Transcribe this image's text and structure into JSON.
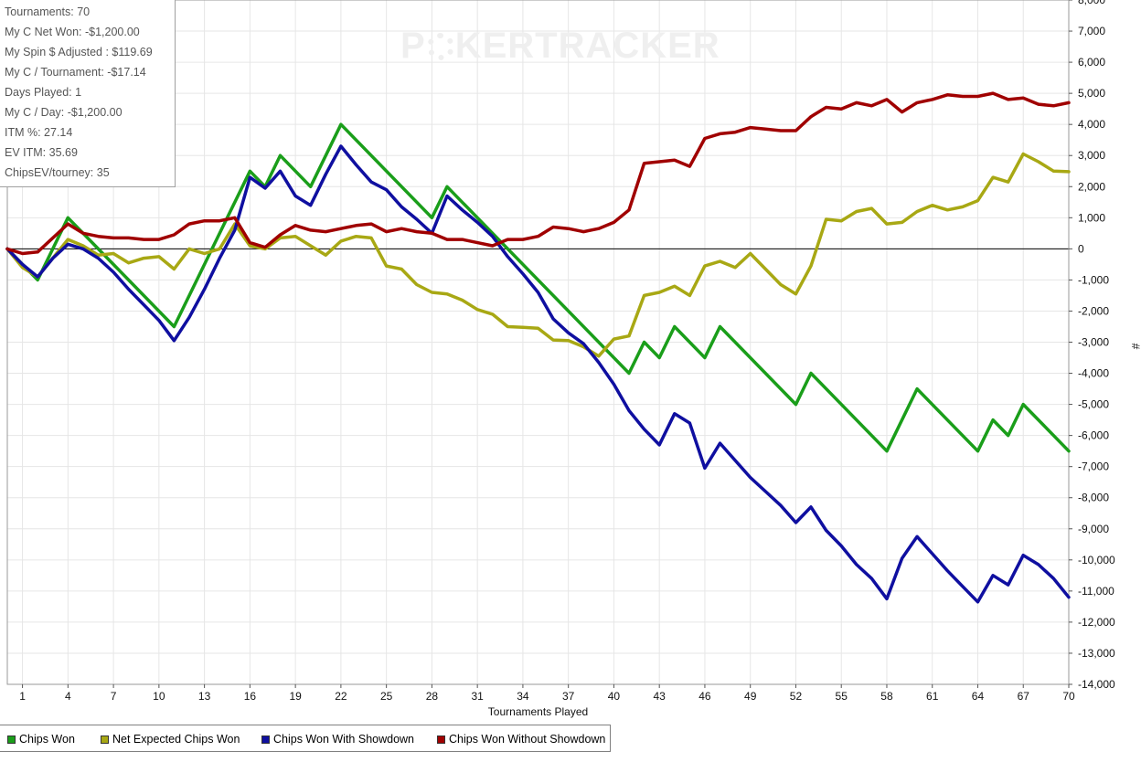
{
  "watermark": {
    "left": "P",
    "right": "KERTRACKER"
  },
  "stats": [
    "Tournaments: 70",
    "My C Net Won: -$1,200.00",
    "My Spin $ Adjusted : $119.69",
    "My C / Tournament: -$17.14",
    "Days Played: 1",
    "My C / Day: -$1,200.00",
    "ITM %: 27.14",
    "EV ITM: 35.69",
    "ChipsEV/tourney: 35"
  ],
  "legend": [
    {
      "label": "Chips Won",
      "color": "#1a9e1a"
    },
    {
      "label": "Net Expected Chips Won",
      "color": "#a8a814"
    },
    {
      "label": "Chips Won With Showdown",
      "color": "#0f0fa0"
    },
    {
      "label": "Chips Won Without Showdown",
      "color": "#a00000"
    }
  ],
  "chart_data": {
    "type": "line",
    "xlabel": "Tournaments Played",
    "ylabel": "#",
    "xlim": [
      0,
      70
    ],
    "ylim": [
      -14000,
      8000
    ],
    "x_ticks": [
      1,
      4,
      7,
      10,
      13,
      16,
      19,
      22,
      25,
      28,
      31,
      34,
      37,
      40,
      43,
      46,
      49,
      52,
      55,
      58,
      61,
      64,
      67,
      70
    ],
    "y_ticks": [
      8000,
      7000,
      6000,
      5000,
      4000,
      3000,
      2000,
      1000,
      0,
      -1000,
      -2000,
      -3000,
      -4000,
      -5000,
      -6000,
      -7000,
      -8000,
      -9000,
      -10000,
      -11000,
      -12000,
      -13000,
      -14000
    ],
    "y_tick_labels": [
      "8,000",
      "7,000",
      "6,000",
      "5,000",
      "4,000",
      "3,000",
      "2,000",
      "1,000",
      "0",
      "-1,000",
      "-2,000",
      "-3,000",
      "-4,000",
      "-5,000",
      "-6,000",
      "-7,000",
      "-8,000",
      "-9,000",
      "-10,000",
      "-11,000",
      "-12,000",
      "-13,000",
      "-14,000"
    ],
    "grid": true,
    "legend_position": "bottom",
    "series": [
      {
        "name": "Chips Won",
        "color": "#1a9e1a",
        "points": [
          [
            0,
            0
          ],
          [
            2,
            -1000
          ],
          [
            4,
            1000
          ],
          [
            11,
            -2500
          ],
          [
            16,
            2500
          ],
          [
            17,
            2000
          ],
          [
            18,
            3000
          ],
          [
            20,
            2000
          ],
          [
            22,
            4000
          ],
          [
            28,
            1000
          ],
          [
            29,
            2000
          ],
          [
            41,
            -4000
          ],
          [
            42,
            -3000
          ],
          [
            43,
            -3500
          ],
          [
            44,
            -2500
          ],
          [
            46,
            -3500
          ],
          [
            47,
            -2500
          ],
          [
            52,
            -5000
          ],
          [
            53,
            -4000
          ],
          [
            58,
            -6500
          ],
          [
            60,
            -4500
          ],
          [
            64,
            -6500
          ],
          [
            65,
            -5500
          ],
          [
            66,
            -6000
          ],
          [
            67,
            -5000
          ],
          [
            70,
            -6500
          ]
        ]
      },
      {
        "name": "Net Expected Chips Won",
        "color": "#a8a814",
        "points": [
          [
            0,
            0
          ],
          [
            1,
            -600
          ],
          [
            2,
            -900
          ],
          [
            4,
            300
          ],
          [
            5,
            100
          ],
          [
            6,
            -200
          ],
          [
            7,
            -150
          ],
          [
            8,
            -450
          ],
          [
            9,
            -300
          ],
          [
            10,
            -250
          ],
          [
            11,
            -650
          ],
          [
            12,
            0
          ],
          [
            13,
            -150
          ],
          [
            14,
            0
          ],
          [
            15,
            800
          ],
          [
            16,
            100
          ],
          [
            17,
            0
          ],
          [
            18,
            350
          ],
          [
            19,
            400
          ],
          [
            20,
            100
          ],
          [
            21,
            -200
          ],
          [
            22,
            250
          ],
          [
            23,
            400
          ],
          [
            24,
            350
          ],
          [
            25,
            -550
          ],
          [
            26,
            -650
          ],
          [
            27,
            -1150
          ],
          [
            28,
            -1400
          ],
          [
            29,
            -1450
          ],
          [
            30,
            -1650
          ],
          [
            31,
            -1950
          ],
          [
            32,
            -2100
          ],
          [
            33,
            -2500
          ],
          [
            34,
            -2520
          ],
          [
            35,
            -2550
          ],
          [
            36,
            -2930
          ],
          [
            37,
            -2950
          ],
          [
            38,
            -3150
          ],
          [
            39,
            -3450
          ],
          [
            40,
            -2900
          ],
          [
            41,
            -2800
          ],
          [
            42,
            -1500
          ],
          [
            43,
            -1400
          ],
          [
            44,
            -1200
          ],
          [
            45,
            -1500
          ],
          [
            46,
            -550
          ],
          [
            47,
            -400
          ],
          [
            48,
            -600
          ],
          [
            49,
            -150
          ],
          [
            50,
            -650
          ],
          [
            51,
            -1150
          ],
          [
            52,
            -1450
          ],
          [
            53,
            -550
          ],
          [
            54,
            950
          ],
          [
            55,
            900
          ],
          [
            56,
            1200
          ],
          [
            57,
            1300
          ],
          [
            58,
            800
          ],
          [
            59,
            850
          ],
          [
            60,
            1200
          ],
          [
            61,
            1400
          ],
          [
            62,
            1250
          ],
          [
            63,
            1350
          ],
          [
            64,
            1550
          ],
          [
            65,
            2300
          ],
          [
            66,
            2150
          ],
          [
            67,
            3050
          ],
          [
            68,
            2800
          ],
          [
            69,
            2500
          ],
          [
            70,
            2480
          ]
        ]
      },
      {
        "name": "Chips Won With Showdown",
        "color": "#0f0fa0",
        "points": [
          [
            0,
            0
          ],
          [
            1,
            -500
          ],
          [
            2,
            -900
          ],
          [
            3,
            -300
          ],
          [
            4,
            150
          ],
          [
            5,
            0
          ],
          [
            6,
            -300
          ],
          [
            7,
            -750
          ],
          [
            8,
            -1300
          ],
          [
            9,
            -1800
          ],
          [
            10,
            -2300
          ],
          [
            11,
            -2950
          ],
          [
            12,
            -2200
          ],
          [
            13,
            -1300
          ],
          [
            14,
            -300
          ],
          [
            15,
            600
          ],
          [
            16,
            2300
          ],
          [
            17,
            1950
          ],
          [
            18,
            2500
          ],
          [
            19,
            1700
          ],
          [
            20,
            1400
          ],
          [
            21,
            2400
          ],
          [
            22,
            3300
          ],
          [
            23,
            2700
          ],
          [
            24,
            2150
          ],
          [
            25,
            1900
          ],
          [
            26,
            1350
          ],
          [
            27,
            950
          ],
          [
            28,
            500
          ],
          [
            29,
            1700
          ],
          [
            30,
            1250
          ],
          [
            31,
            850
          ],
          [
            32,
            400
          ],
          [
            33,
            -250
          ],
          [
            34,
            -800
          ],
          [
            35,
            -1400
          ],
          [
            36,
            -2250
          ],
          [
            37,
            -2700
          ],
          [
            38,
            -3050
          ],
          [
            39,
            -3650
          ],
          [
            40,
            -4350
          ],
          [
            41,
            -5200
          ],
          [
            42,
            -5800
          ],
          [
            43,
            -6300
          ],
          [
            44,
            -5300
          ],
          [
            45,
            -5600
          ],
          [
            46,
            -7050
          ],
          [
            47,
            -6250
          ],
          [
            48,
            -6800
          ],
          [
            49,
            -7350
          ],
          [
            50,
            -7800
          ],
          [
            51,
            -8250
          ],
          [
            52,
            -8800
          ],
          [
            53,
            -8300
          ],
          [
            54,
            -9050
          ],
          [
            55,
            -9550
          ],
          [
            56,
            -10150
          ],
          [
            57,
            -10600
          ],
          [
            58,
            -11250
          ],
          [
            59,
            -9950
          ],
          [
            60,
            -9250
          ],
          [
            61,
            -9800
          ],
          [
            62,
            -10350
          ],
          [
            63,
            -10850
          ],
          [
            64,
            -11350
          ],
          [
            65,
            -10500
          ],
          [
            66,
            -10800
          ],
          [
            67,
            -9850
          ],
          [
            68,
            -10150
          ],
          [
            69,
            -10600
          ],
          [
            70,
            -11200
          ]
        ]
      },
      {
        "name": "Chips Won Without Showdown",
        "color": "#a00000",
        "points": [
          [
            0,
            0
          ],
          [
            1,
            -150
          ],
          [
            2,
            -100
          ],
          [
            4,
            800
          ],
          [
            5,
            500
          ],
          [
            6,
            400
          ],
          [
            7,
            350
          ],
          [
            8,
            350
          ],
          [
            9,
            300
          ],
          [
            10,
            300
          ],
          [
            11,
            450
          ],
          [
            12,
            800
          ],
          [
            13,
            900
          ],
          [
            14,
            900
          ],
          [
            15,
            1000
          ],
          [
            16,
            200
          ],
          [
            17,
            50
          ],
          [
            18,
            450
          ],
          [
            19,
            750
          ],
          [
            20,
            600
          ],
          [
            21,
            550
          ],
          [
            22,
            650
          ],
          [
            23,
            750
          ],
          [
            24,
            800
          ],
          [
            25,
            550
          ],
          [
            26,
            650
          ],
          [
            27,
            550
          ],
          [
            28,
            500
          ],
          [
            29,
            300
          ],
          [
            30,
            300
          ],
          [
            31,
            200
          ],
          [
            32,
            100
          ],
          [
            33,
            300
          ],
          [
            34,
            300
          ],
          [
            35,
            400
          ],
          [
            36,
            700
          ],
          [
            37,
            650
          ],
          [
            38,
            550
          ],
          [
            39,
            650
          ],
          [
            40,
            850
          ],
          [
            41,
            1250
          ],
          [
            42,
            2750
          ],
          [
            43,
            2800
          ],
          [
            44,
            2850
          ],
          [
            45,
            2650
          ],
          [
            46,
            3550
          ],
          [
            47,
            3700
          ],
          [
            48,
            3750
          ],
          [
            49,
            3900
          ],
          [
            50,
            3850
          ],
          [
            51,
            3800
          ],
          [
            52,
            3800
          ],
          [
            53,
            4250
          ],
          [
            54,
            4550
          ],
          [
            55,
            4500
          ],
          [
            56,
            4700
          ],
          [
            57,
            4600
          ],
          [
            58,
            4800
          ],
          [
            59,
            4400
          ],
          [
            60,
            4700
          ],
          [
            61,
            4800
          ],
          [
            62,
            4950
          ],
          [
            63,
            4900
          ],
          [
            64,
            4900
          ],
          [
            65,
            5000
          ],
          [
            66,
            4800
          ],
          [
            67,
            4850
          ],
          [
            68,
            4650
          ],
          [
            69,
            4600
          ],
          [
            70,
            4700
          ]
        ]
      }
    ]
  }
}
